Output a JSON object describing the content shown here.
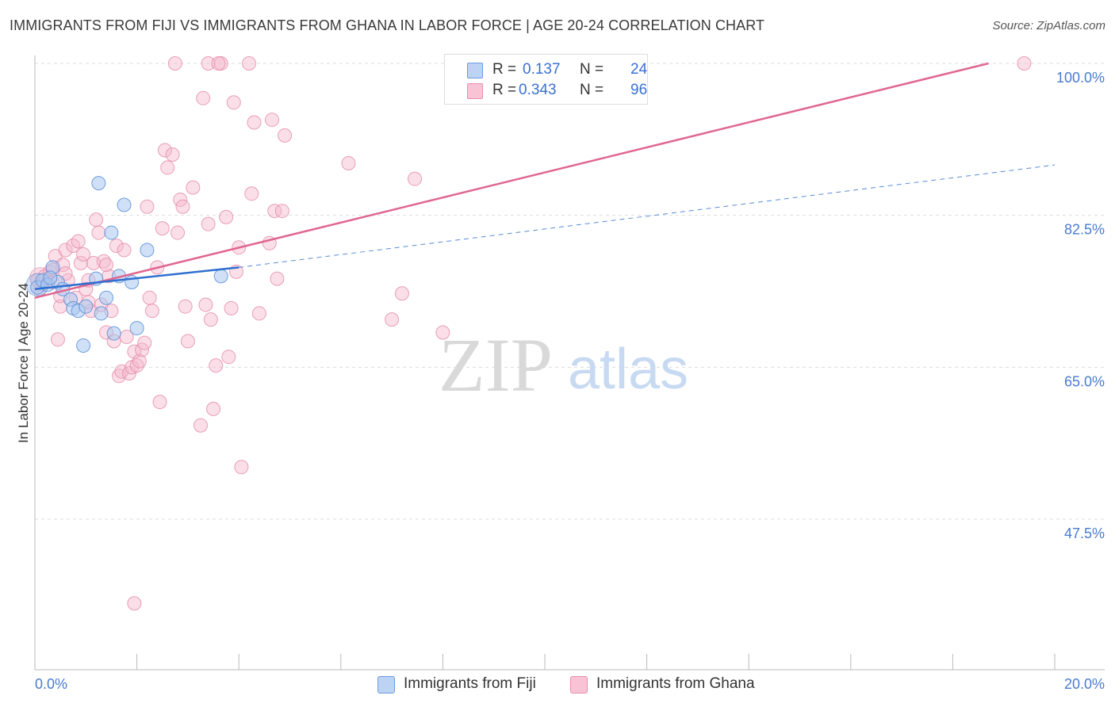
{
  "title": "IMMIGRANTS FROM FIJI VS IMMIGRANTS FROM GHANA IN LABOR FORCE | AGE 20-24 CORRELATION CHART",
  "source": "Source: ZipAtlas.com",
  "watermark": {
    "zip": "ZIP",
    "atlas": "atlas"
  },
  "legend": {
    "r_label": "R =",
    "n_label": "N =",
    "fiji": {
      "r": "0.137",
      "n": "24"
    },
    "ghana": {
      "r": "0.343",
      "n": "96"
    }
  },
  "bottom_legend": {
    "fiji": "Immigrants from Fiji",
    "ghana": "Immigrants from Ghana"
  },
  "colors": {
    "fiji_fill": "#a9c6ef",
    "fiji_stroke": "#5b8fd9",
    "fiji_line": "#2f6fd0",
    "ghana_fill": "#f5b9cc",
    "ghana_stroke": "#e589a8",
    "ghana_line": "#e0668f",
    "axis_text": "#4a7bd0",
    "grid": "#dddddd"
  },
  "chart_data": {
    "type": "scatter",
    "title": "IMMIGRANTS FROM FIJI VS IMMIGRANTS FROM GHANA IN LABOR FORCE | AGE 20-24 CORRELATION CHART",
    "xlabel": "",
    "ylabel": "In Labor Force | Age 20-24",
    "xlim": [
      0,
      20
    ],
    "ylim": [
      30,
      101.5
    ],
    "x_tick_labels": [
      "0.0%",
      "20.0%"
    ],
    "y_ticks": [
      47.5,
      65.0,
      82.5,
      100.0
    ],
    "y_tick_labels": [
      "47.5%",
      "65.0%",
      "82.5%",
      "100.0%"
    ],
    "series": [
      {
        "name": "Immigrants from Fiji",
        "points": [
          [
            0.05,
            74.2
          ],
          [
            0.15,
            75.0
          ],
          [
            0.25,
            74.5
          ],
          [
            0.35,
            76.5
          ],
          [
            0.45,
            74.8
          ],
          [
            0.55,
            74.0
          ],
          [
            0.7,
            72.8
          ],
          [
            0.75,
            71.8
          ],
          [
            0.85,
            71.5
          ],
          [
            1.0,
            72.0
          ],
          [
            1.2,
            75.2
          ],
          [
            1.25,
            86.2
          ],
          [
            1.3,
            71.2
          ],
          [
            1.4,
            73.0
          ],
          [
            1.5,
            80.5
          ],
          [
            1.55,
            68.9
          ],
          [
            1.65,
            75.5
          ],
          [
            1.75,
            83.7
          ],
          [
            1.9,
            74.8
          ],
          [
            2.0,
            69.5
          ],
          [
            2.2,
            78.5
          ],
          [
            0.95,
            67.5
          ],
          [
            3.65,
            75.5
          ],
          [
            0.3,
            75.3
          ]
        ],
        "trend": {
          "x": [
            0,
            4.0
          ],
          "y": [
            74.0,
            76.5
          ]
        },
        "trend_extended": {
          "x": [
            4.0,
            20.0
          ],
          "y": [
            76.5,
            88.3
          ]
        }
      },
      {
        "name": "Immigrants from Ghana",
        "points": [
          [
            0.05,
            75.0
          ],
          [
            0.15,
            74.5
          ],
          [
            0.2,
            75.5
          ],
          [
            0.3,
            76.0
          ],
          [
            0.35,
            74.8
          ],
          [
            0.4,
            77.8
          ],
          [
            0.45,
            68.2
          ],
          [
            0.5,
            72.0
          ],
          [
            0.55,
            76.8
          ],
          [
            0.6,
            78.5
          ],
          [
            0.65,
            75.0
          ],
          [
            0.75,
            79.0
          ],
          [
            0.8,
            73.0
          ],
          [
            0.85,
            79.5
          ],
          [
            0.9,
            77.0
          ],
          [
            0.95,
            78.0
          ],
          [
            1.0,
            74.0
          ],
          [
            1.05,
            75.0
          ],
          [
            1.1,
            71.5
          ],
          [
            1.15,
            77.0
          ],
          [
            1.2,
            82.0
          ],
          [
            1.25,
            80.5
          ],
          [
            1.3,
            72.2
          ],
          [
            1.35,
            77.2
          ],
          [
            1.4,
            69.0
          ],
          [
            1.45,
            75.5
          ],
          [
            1.5,
            71.5
          ],
          [
            1.55,
            68.0
          ],
          [
            1.6,
            79.0
          ],
          [
            1.65,
            64.0
          ],
          [
            1.7,
            64.5
          ],
          [
            1.75,
            78.5
          ],
          [
            1.8,
            68.5
          ],
          [
            1.85,
            64.3
          ],
          [
            1.9,
            65.0
          ],
          [
            1.95,
            66.8
          ],
          [
            2.0,
            65.2
          ],
          [
            2.05,
            65.7
          ],
          [
            2.1,
            67.0
          ],
          [
            2.15,
            67.8
          ],
          [
            2.2,
            83.5
          ],
          [
            2.25,
            73.0
          ],
          [
            2.3,
            71.5
          ],
          [
            2.4,
            76.5
          ],
          [
            2.45,
            61.0
          ],
          [
            2.5,
            81.0
          ],
          [
            2.55,
            90.0
          ],
          [
            2.6,
            88.0
          ],
          [
            2.7,
            89.5
          ],
          [
            2.8,
            80.5
          ],
          [
            2.85,
            84.3
          ],
          [
            2.9,
            83.5
          ],
          [
            2.95,
            72.0
          ],
          [
            3.0,
            68.0
          ],
          [
            3.1,
            85.7
          ],
          [
            3.25,
            58.3
          ],
          [
            3.3,
            96.0
          ],
          [
            3.35,
            72.2
          ],
          [
            3.4,
            81.5
          ],
          [
            3.45,
            70.5
          ],
          [
            3.5,
            60.2
          ],
          [
            3.55,
            65.2
          ],
          [
            3.65,
            100.0
          ],
          [
            3.75,
            82.3
          ],
          [
            3.8,
            66.2
          ],
          [
            3.85,
            71.8
          ],
          [
            3.9,
            95.5
          ],
          [
            3.95,
            76.0
          ],
          [
            4.0,
            78.8
          ],
          [
            4.05,
            53.5
          ],
          [
            4.2,
            100.0
          ],
          [
            4.25,
            85.0
          ],
          [
            4.3,
            93.2
          ],
          [
            4.4,
            71.2
          ],
          [
            4.6,
            79.3
          ],
          [
            4.65,
            93.5
          ],
          [
            4.7,
            83.0
          ],
          [
            4.75,
            75.2
          ],
          [
            4.85,
            83.0
          ],
          [
            4.9,
            91.7
          ],
          [
            3.4,
            100.0
          ],
          [
            2.75,
            100.0
          ],
          [
            3.6,
            100.0
          ],
          [
            6.15,
            88.5
          ],
          [
            7.0,
            70.5
          ],
          [
            7.2,
            73.5
          ],
          [
            7.45,
            86.7
          ],
          [
            8.0,
            69.0
          ],
          [
            19.4,
            100.0
          ],
          [
            1.95,
            37.8
          ],
          [
            0.35,
            76.2
          ],
          [
            0.1,
            74.0
          ],
          [
            0.5,
            73.2
          ],
          [
            0.6,
            75.8
          ],
          [
            1.05,
            72.5
          ],
          [
            1.4,
            76.8
          ]
        ],
        "trend": {
          "x": [
            0,
            18.7
          ],
          "y": [
            73.0,
            100.0
          ]
        }
      }
    ]
  }
}
